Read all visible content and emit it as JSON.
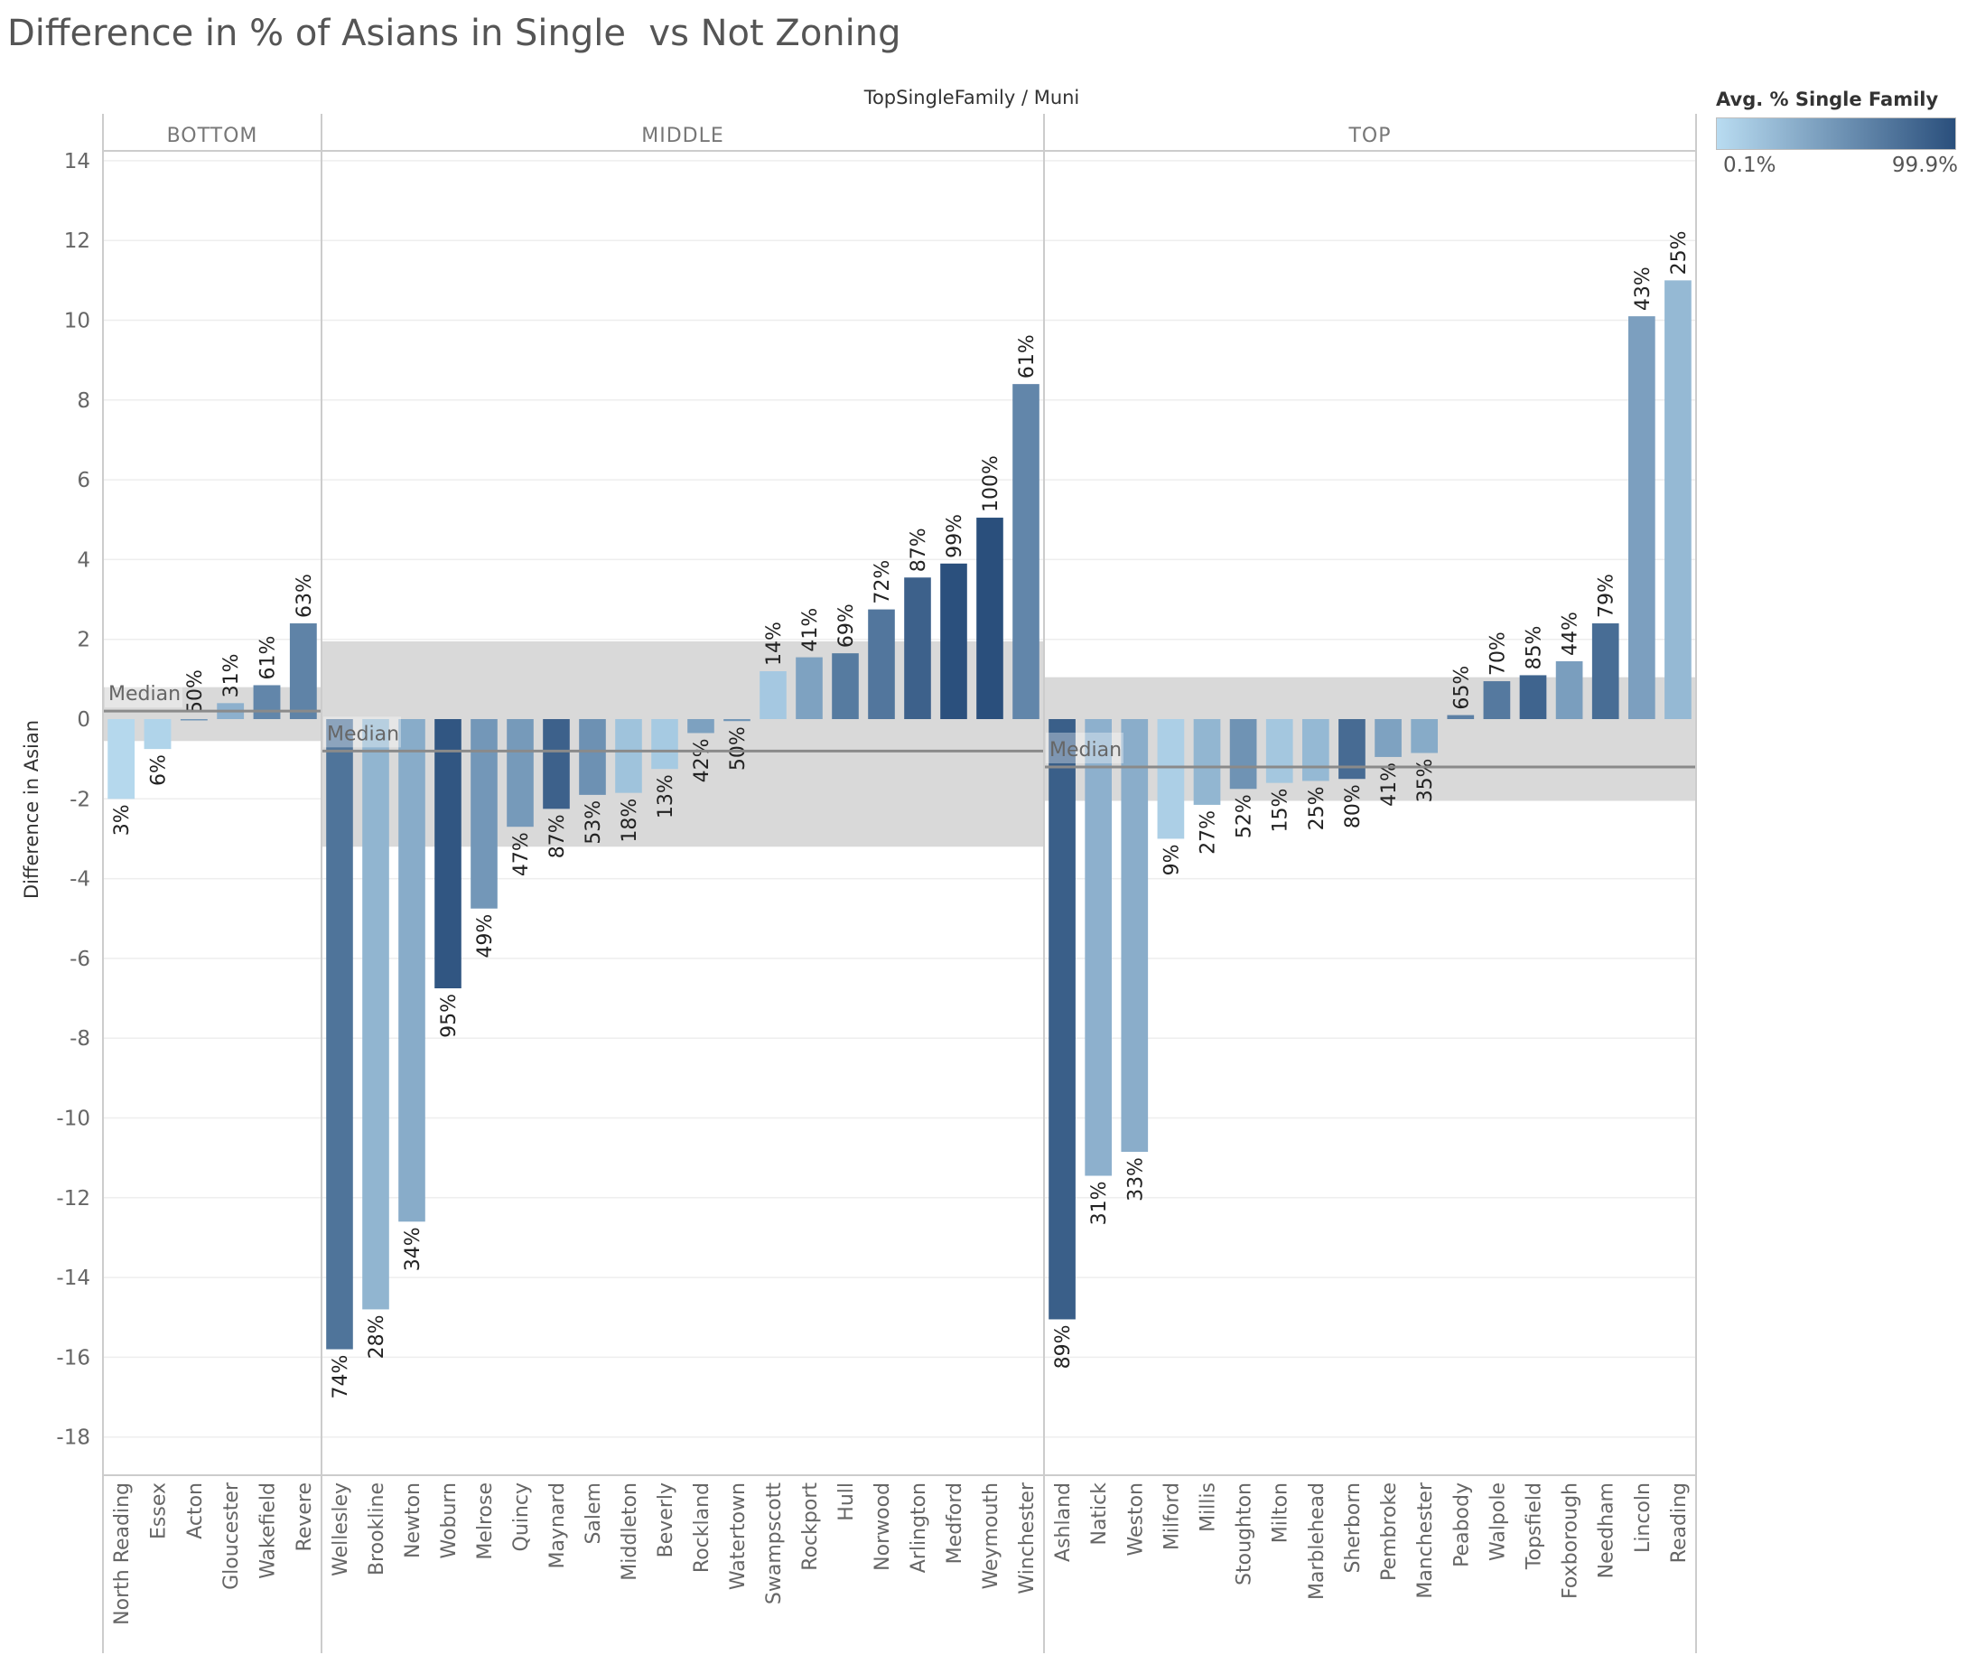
{
  "title": "Difference in % of Asians in Single  vs Not Zoning",
  "legend": {
    "title": "Avg. % Single Family",
    "min_label": "0.1%",
    "max_label": "99.9%",
    "color_low": "#b9dcf1",
    "color_high": "#2a4f7c"
  },
  "chart_data": {
    "type": "bar",
    "title": "Difference in % of Asians in Single  vs Not Zoning",
    "column_header": "TopSingleFamily / Muni",
    "ylabel": "Difference in Asian",
    "xlabel": "",
    "ylim": [
      -19,
      14.5
    ],
    "y_ticks": [
      14,
      12,
      10,
      8,
      6,
      4,
      2,
      0,
      -2,
      -4,
      -6,
      -8,
      -10,
      -12,
      -14,
      -16,
      -18
    ],
    "gridlines": true,
    "reference_label": "Median",
    "panels": [
      {
        "name": "BOTTOM",
        "median": 0.2,
        "band": [
          -0.55,
          0.8
        ],
        "bars": [
          {
            "muni": "North Reading",
            "value": -2.0,
            "label": "3%",
            "pct": 3
          },
          {
            "muni": "Essex",
            "value": -0.75,
            "label": "6%",
            "pct": 6
          },
          {
            "muni": "Acton",
            "value": 0.0,
            "label": "50%",
            "pct": 50
          },
          {
            "muni": "Gloucester",
            "value": 0.4,
            "label": "31%",
            "pct": 31
          },
          {
            "muni": "Wakefield",
            "value": 0.85,
            "label": "61%",
            "pct": 61
          },
          {
            "muni": "Revere",
            "value": 2.4,
            "label": "63%",
            "pct": 63
          }
        ]
      },
      {
        "name": "MIDDLE",
        "median": -0.8,
        "band": [
          -3.2,
          1.95
        ],
        "bars": [
          {
            "muni": "Wellesley",
            "value": -15.8,
            "label": "74%",
            "pct": 74
          },
          {
            "muni": "Brookline",
            "value": -14.8,
            "label": "28%",
            "pct": 28
          },
          {
            "muni": "Newton",
            "value": -12.6,
            "label": "34%",
            "pct": 34
          },
          {
            "muni": "Woburn",
            "value": -6.75,
            "label": "95%",
            "pct": 95
          },
          {
            "muni": "Melrose",
            "value": -4.75,
            "label": "49%",
            "pct": 49
          },
          {
            "muni": "Quincy",
            "value": -2.7,
            "label": "47%",
            "pct": 47
          },
          {
            "muni": "Maynard",
            "value": -2.25,
            "label": "87%",
            "pct": 87
          },
          {
            "muni": "Salem",
            "value": -1.9,
            "label": "53%",
            "pct": 53
          },
          {
            "muni": "Middleton",
            "value": -1.85,
            "label": "18%",
            "pct": 18
          },
          {
            "muni": "Beverly",
            "value": -1.25,
            "label": "13%",
            "pct": 13
          },
          {
            "muni": "Rockland",
            "value": -0.35,
            "label": "42%",
            "pct": 42
          },
          {
            "muni": "Watertown",
            "value": -0.05,
            "label": "50%",
            "pct": 50
          },
          {
            "muni": "Swampscott",
            "value": 1.2,
            "label": "14%",
            "pct": 14
          },
          {
            "muni": "Rockport",
            "value": 1.55,
            "label": "41%",
            "pct": 41
          },
          {
            "muni": "Hull",
            "value": 1.65,
            "label": "69%",
            "pct": 69
          },
          {
            "muni": "Norwood",
            "value": 2.75,
            "label": "72%",
            "pct": 72
          },
          {
            "muni": "Arlington",
            "value": 3.55,
            "label": "87%",
            "pct": 87
          },
          {
            "muni": "Medford",
            "value": 3.9,
            "label": "99%",
            "pct": 99
          },
          {
            "muni": "Weymouth",
            "value": 5.05,
            "label": "100%",
            "pct": 100
          },
          {
            "muni": "Winchester",
            "value": 8.4,
            "label": "61%",
            "pct": 61
          }
        ]
      },
      {
        "name": "TOP",
        "median": -1.2,
        "band": [
          -2.05,
          1.05
        ],
        "bars": [
          {
            "muni": "Ashland",
            "value": -15.05,
            "label": "89%",
            "pct": 89
          },
          {
            "muni": "Natick",
            "value": -11.45,
            "label": "31%",
            "pct": 31
          },
          {
            "muni": "Weston",
            "value": -10.85,
            "label": "33%",
            "pct": 33
          },
          {
            "muni": "Milford",
            "value": -3.0,
            "label": "9%",
            "pct": 9
          },
          {
            "muni": "Millis",
            "value": -2.15,
            "label": "27%",
            "pct": 27
          },
          {
            "muni": "Stoughton",
            "value": -1.75,
            "label": "52%",
            "pct": 52
          },
          {
            "muni": "Milton",
            "value": -1.6,
            "label": "15%",
            "pct": 15
          },
          {
            "muni": "Marblehead",
            "value": -1.55,
            "label": "25%",
            "pct": 25
          },
          {
            "muni": "Sherborn",
            "value": -1.5,
            "label": "80%",
            "pct": 80
          },
          {
            "muni": "Pembroke",
            "value": -0.95,
            "label": "41%",
            "pct": 41
          },
          {
            "muni": "Manchester",
            "value": -0.85,
            "label": "35%",
            "pct": 35
          },
          {
            "muni": "Peabody",
            "value": 0.1,
            "label": "65%",
            "pct": 65
          },
          {
            "muni": "Walpole",
            "value": 0.95,
            "label": "70%",
            "pct": 70
          },
          {
            "muni": "Topsfield",
            "value": 1.1,
            "label": "85%",
            "pct": 85
          },
          {
            "muni": "Foxborough",
            "value": 1.45,
            "label": "44%",
            "pct": 44
          },
          {
            "muni": "Needham",
            "value": 2.4,
            "label": "79%",
            "pct": 79
          },
          {
            "muni": "Lincoln",
            "value": 10.1,
            "label": "43%",
            "pct": 43
          },
          {
            "muni": "Reading",
            "value": 11.0,
            "label": "25%",
            "pct": 25
          }
        ]
      }
    ]
  }
}
